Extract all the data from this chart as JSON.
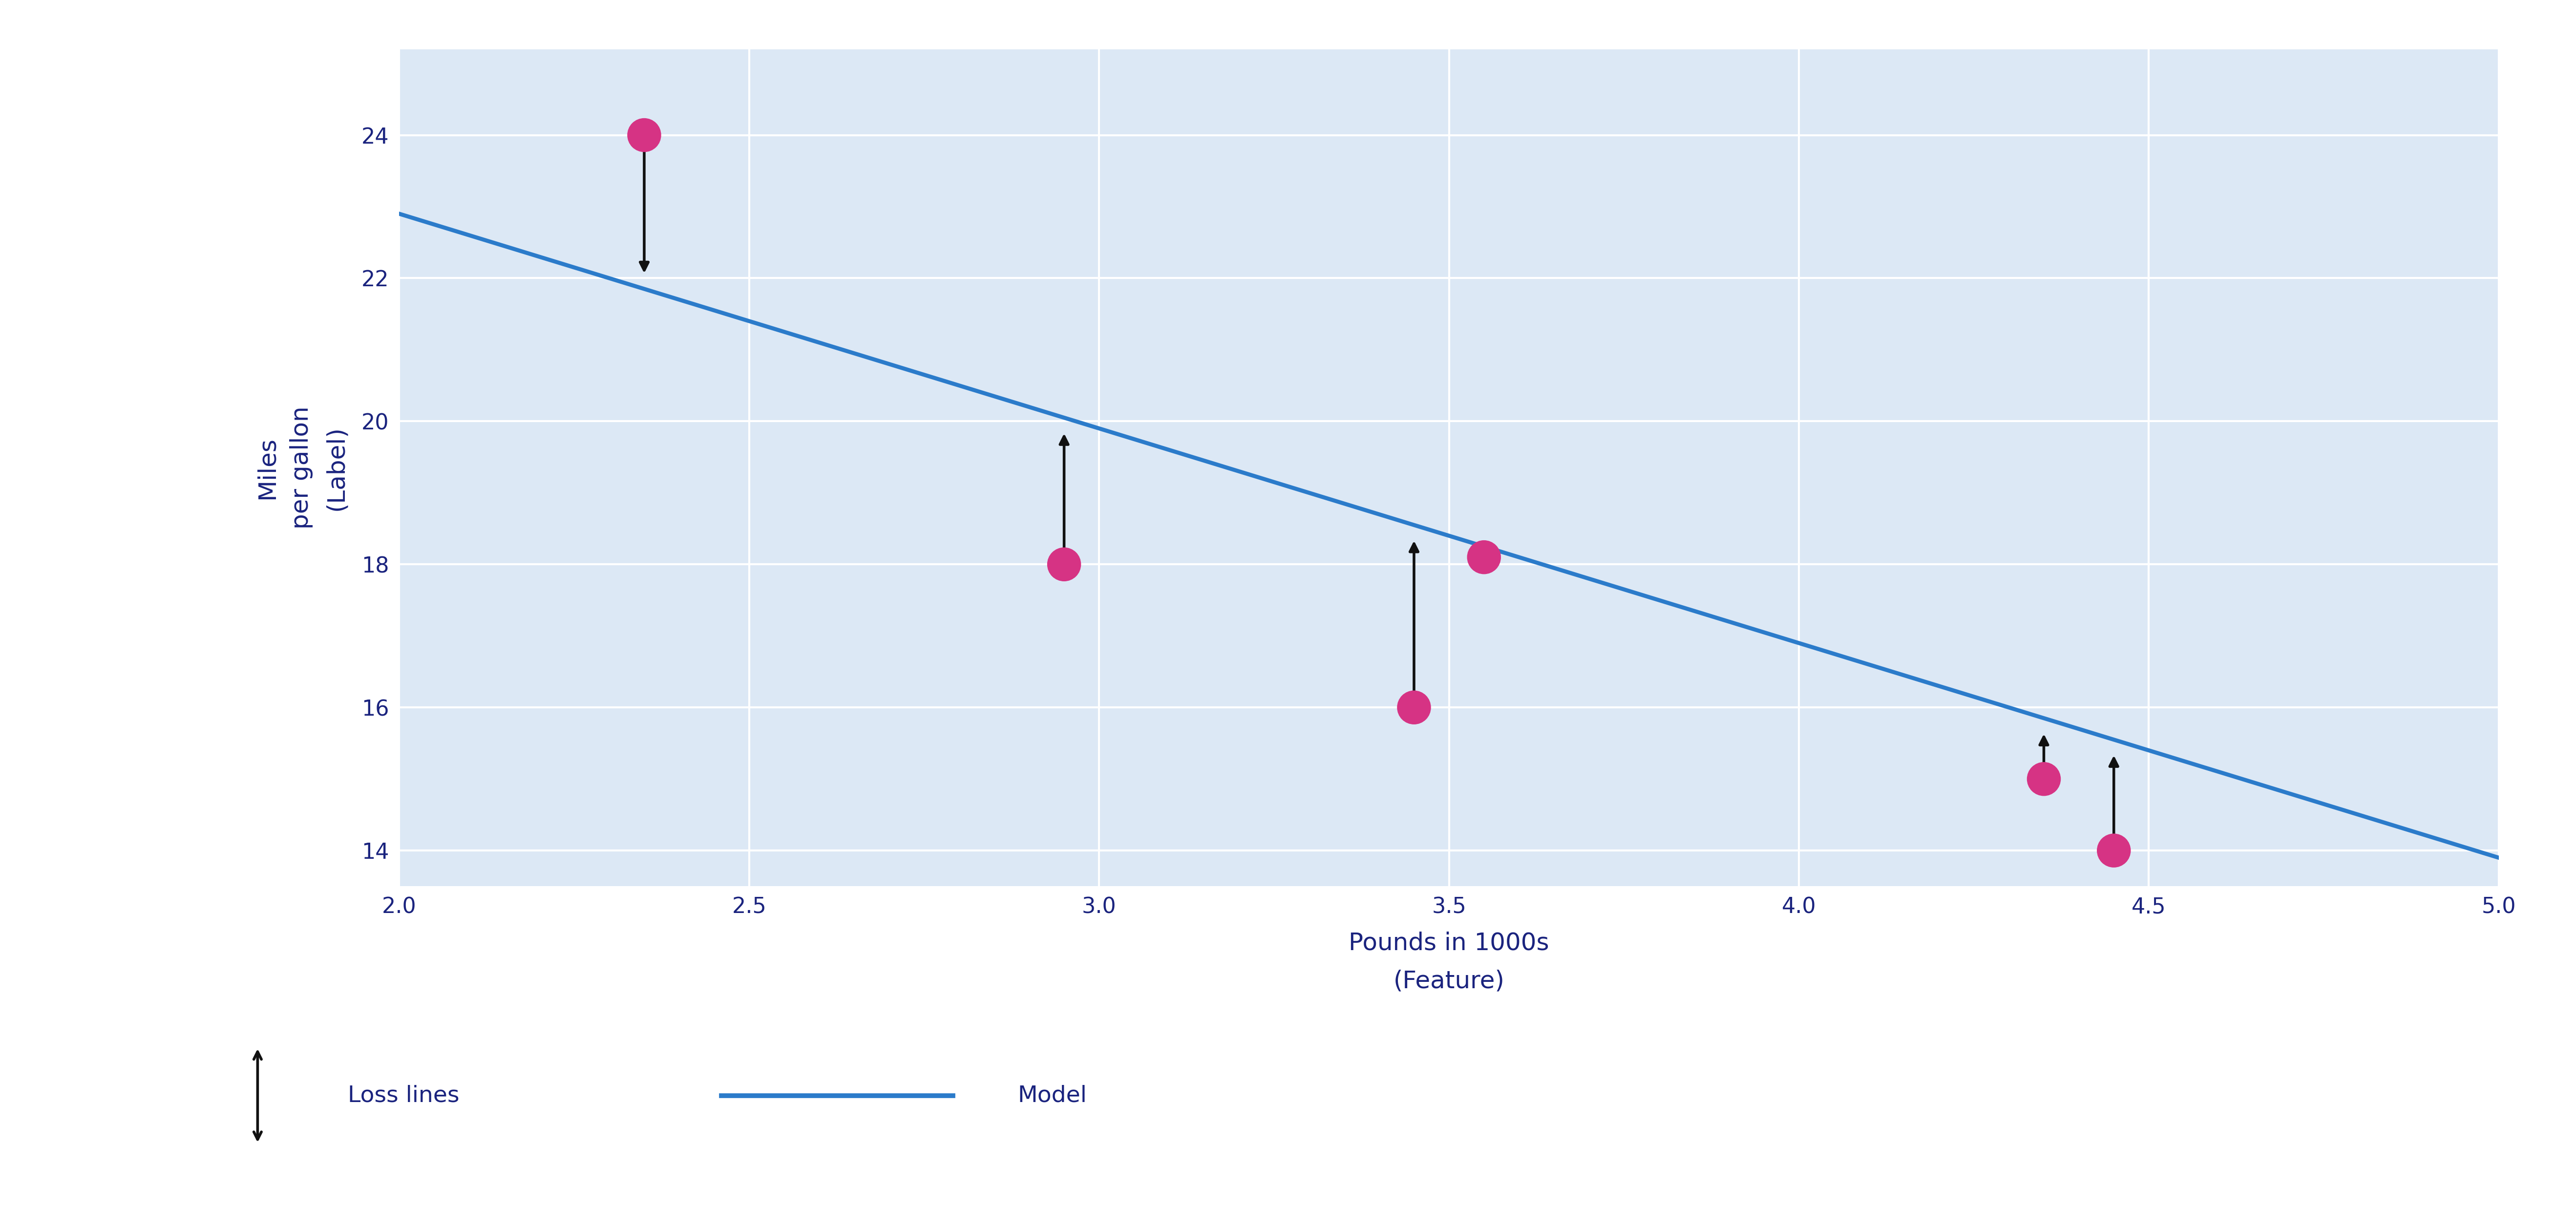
{
  "xlabel": "Pounds in 1000s\n(Feature)",
  "ylabel": "Miles\nper gallon\n(Label)",
  "xlim": [
    2,
    5
  ],
  "ylim": [
    13.5,
    25.2
  ],
  "xticks": [
    2,
    2.5,
    3,
    3.5,
    4,
    4.5,
    5
  ],
  "yticks": [
    14,
    16,
    18,
    20,
    22,
    24
  ],
  "bg_color": "#dce8f5",
  "grid_color": "#ffffff",
  "scatter_x": [
    2.35,
    2.95,
    3.45,
    3.55,
    4.35,
    4.45
  ],
  "scatter_y": [
    24.0,
    18.0,
    16.0,
    18.1,
    15.0,
    14.0
  ],
  "scatter_color": "#d63384",
  "line_color": "#2b7bca",
  "line_x_start": 2.0,
  "line_x_end": 5.0,
  "line_slope": -3.0,
  "line_intercept": 28.9,
  "loss_line_color": "#111111",
  "legend_loss_label": "Loss lines",
  "legend_model_label": "Model",
  "xlabel_fontsize": 36,
  "ylabel_fontsize": 36,
  "tick_fontsize": 32,
  "legend_fontsize": 34,
  "tick_color": "#1a237e"
}
